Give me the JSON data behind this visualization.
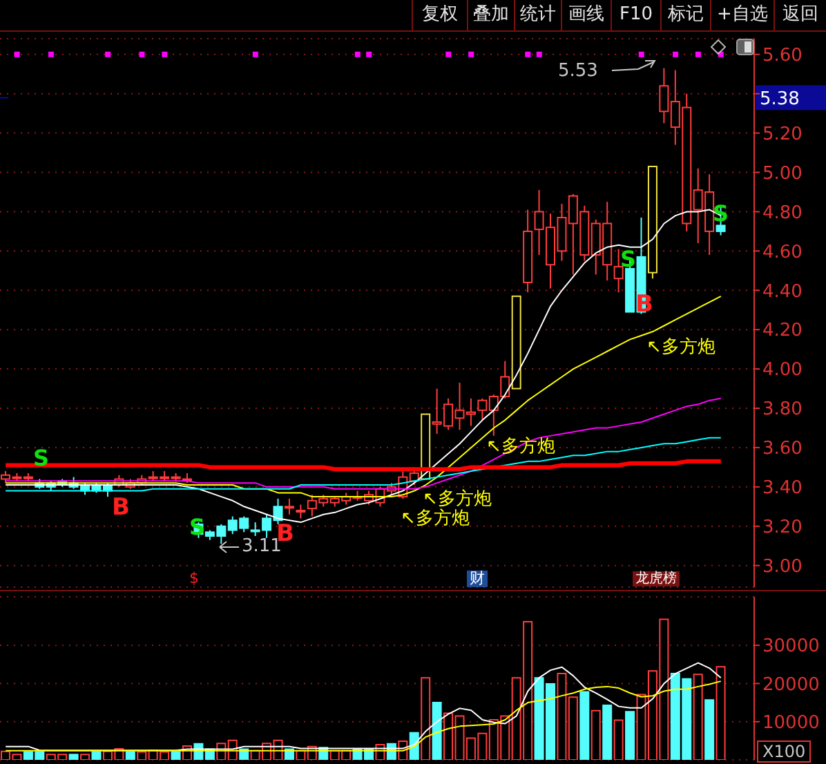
{
  "chart_data": [
    {
      "type": "other",
      "categories": [
        "复权",
        "叠加",
        "统计",
        "画线",
        "F10",
        "标记",
        "+自选",
        "返回"
      ]
    },
    {
      "type": "candlestick",
      "categories": [
        null,
        null,
        null,
        null,
        null,
        null,
        null,
        null,
        null,
        null,
        null,
        null,
        null,
        null,
        null,
        null,
        null,
        null,
        null,
        null,
        null,
        null,
        null,
        null,
        null,
        null,
        null,
        null,
        null,
        null,
        null,
        null,
        null,
        null,
        null,
        null,
        null,
        null,
        null,
        null,
        null,
        null,
        null,
        null,
        null,
        null,
        null,
        null,
        null,
        null,
        null,
        null,
        null,
        null,
        null,
        null,
        null,
        null,
        null,
        null,
        null,
        null,
        null,
        null
      ],
      "ohlc": [
        [
          3.44,
          3.48,
          3.42,
          3.46
        ],
        [
          3.45,
          3.47,
          3.43,
          3.45
        ],
        [
          3.45,
          3.47,
          3.43,
          3.45
        ],
        [
          3.42,
          3.44,
          3.39,
          3.4
        ],
        [
          3.42,
          3.43,
          3.38,
          3.4
        ],
        [
          3.43,
          3.44,
          3.4,
          3.41
        ],
        [
          3.42,
          3.45,
          3.39,
          3.4
        ],
        [
          3.41,
          3.42,
          3.36,
          3.38
        ],
        [
          3.41,
          3.42,
          3.37,
          3.38
        ],
        [
          3.41,
          3.42,
          3.35,
          3.38
        ],
        [
          3.41,
          3.46,
          3.4,
          3.44
        ],
        [
          3.4,
          3.44,
          3.39,
          3.42
        ],
        [
          3.42,
          3.46,
          3.41,
          3.44
        ],
        [
          3.45,
          3.48,
          3.43,
          3.45
        ],
        [
          3.45,
          3.48,
          3.43,
          3.45
        ],
        [
          3.45,
          3.47,
          3.43,
          3.45
        ],
        [
          3.44,
          3.47,
          3.42,
          3.44
        ],
        [
          3.21,
          3.22,
          3.14,
          3.16
        ],
        [
          3.17,
          3.18,
          3.13,
          3.15
        ],
        [
          3.2,
          3.21,
          3.11,
          3.15
        ],
        [
          3.23,
          3.25,
          3.16,
          3.18
        ],
        [
          3.24,
          3.25,
          3.17,
          3.19
        ],
        [
          3.18,
          3.22,
          3.15,
          3.18
        ],
        [
          3.24,
          3.26,
          3.14,
          3.18
        ],
        [
          3.3,
          3.34,
          3.21,
          3.23
        ],
        [
          3.3,
          3.34,
          3.26,
          3.3
        ],
        [
          3.28,
          3.31,
          3.24,
          3.28
        ],
        [
          3.29,
          3.36,
          3.25,
          3.33
        ],
        [
          3.32,
          3.36,
          3.3,
          3.34
        ],
        [
          3.32,
          3.35,
          3.3,
          3.34
        ],
        [
          3.33,
          3.37,
          3.31,
          3.35
        ],
        [
          3.35,
          3.38,
          3.33,
          3.35
        ],
        [
          3.33,
          3.38,
          3.31,
          3.36
        ],
        [
          3.32,
          3.4,
          3.3,
          3.39
        ],
        [
          3.38,
          3.42,
          3.36,
          3.4
        ],
        [
          3.35,
          3.48,
          3.34,
          3.45
        ],
        [
          3.43,
          3.5,
          3.41,
          3.47
        ],
        [
          3.44,
          3.77,
          3.44,
          3.77
        ],
        [
          3.72,
          3.9,
          3.67,
          3.73
        ],
        [
          3.71,
          3.85,
          3.69,
          3.82
        ],
        [
          3.75,
          3.93,
          3.69,
          3.79
        ],
        [
          3.77,
          3.85,
          3.71,
          3.78
        ],
        [
          3.79,
          3.85,
          3.74,
          3.84
        ],
        [
          3.79,
          3.87,
          3.66,
          3.86
        ],
        [
          3.86,
          4.04,
          3.85,
          3.96
        ],
        [
          3.9,
          4.37,
          3.9,
          4.37
        ],
        [
          4.44,
          4.81,
          4.39,
          4.7
        ],
        [
          4.71,
          4.91,
          4.58,
          4.8
        ],
        [
          4.53,
          4.79,
          4.41,
          4.72
        ],
        [
          4.6,
          4.84,
          4.55,
          4.77
        ],
        [
          4.74,
          4.89,
          4.48,
          4.88
        ],
        [
          4.58,
          4.83,
          4.55,
          4.8
        ],
        [
          4.58,
          4.76,
          4.48,
          4.74
        ],
        [
          4.53,
          4.85,
          4.45,
          4.74
        ],
        [
          4.46,
          4.61,
          4.39,
          4.52
        ],
        [
          4.51,
          4.56,
          4.29,
          4.29
        ],
        [
          4.57,
          4.77,
          4.28,
          4.29
        ],
        [
          4.49,
          5.03,
          4.46,
          5.03
        ],
        [
          5.31,
          5.53,
          5.25,
          5.44
        ],
        [
          5.23,
          5.52,
          5.14,
          5.36
        ],
        [
          4.74,
          5.4,
          4.7,
          5.33
        ],
        [
          4.81,
          5.02,
          4.64,
          4.91
        ],
        [
          4.7,
          4.99,
          4.58,
          4.9
        ],
        [
          4.73,
          4.83,
          4.68,
          4.7
        ]
      ],
      "colors": [
        "#ff3c3c",
        "#ff3c3c",
        "#ff3c3c",
        "#54fcfc",
        "#54fcfc",
        "#54fcfc",
        "#54fcfc",
        "#54fcfc",
        "#54fcfc",
        "#54fcfc",
        "#ff3c3c",
        "#ff3c3c",
        "#ff3c3c",
        "#ff3c3c",
        "#ff3c3c",
        "#ff3c3c",
        "#ff3c3c",
        "#54fcfc",
        "#54fcfc",
        "#54fcfc",
        "#54fcfc",
        "#54fcfc",
        "#54fcfc",
        "#54fcfc",
        "#54fcfc",
        "#ff3c3c",
        "#ff3c3c",
        "#ff3c3c",
        "#ff3c3c",
        "#ff3c3c",
        "#ff3c3c",
        "#ff3c3c",
        "#ff3c3c",
        "#ff3c3c",
        "#ff3c3c",
        "#ff3c3c",
        "#ff3c3c",
        "#f0e040",
        "#ff3c3c",
        "#ff3c3c",
        "#ff3c3c",
        "#ff3c3c",
        "#ff3c3c",
        "#ff3c3c",
        "#ff3c3c",
        "#f0e040",
        "#ff3c3c",
        "#ff3c3c",
        "#ff3c3c",
        "#ff3c3c",
        "#ff3c3c",
        "#ff3c3c",
        "#ff3c3c",
        "#ff3c3c",
        "#ff3c3c",
        "#54fcfc",
        "#54fcfc",
        "#f0e040",
        "#ff3c3c",
        "#ff3c3c",
        "#ff3c3c",
        "#ff3c3c",
        "#ff3c3c",
        "#54fcfc"
      ],
      "series": [
        {
          "type": "line",
          "color": "#ffffff",
          "values": [
            3.41,
            3.41,
            3.41,
            3.41,
            3.41,
            3.41,
            3.41,
            3.41,
            3.41,
            3.41,
            3.41,
            3.41,
            3.41,
            3.41,
            3.41,
            3.41,
            3.4,
            3.39,
            3.37,
            3.35,
            3.33,
            3.3,
            3.28,
            3.26,
            3.24,
            3.23,
            3.22,
            3.24,
            3.26,
            3.27,
            3.29,
            3.31,
            3.32,
            3.34,
            3.36,
            3.38,
            3.42,
            3.47,
            3.52,
            3.57,
            3.62,
            3.68,
            3.74,
            3.79,
            3.87,
            3.97,
            4.08,
            4.2,
            4.32,
            4.4,
            4.47,
            4.54,
            4.59,
            4.62,
            4.63,
            4.62,
            4.62,
            4.66,
            4.74,
            4.78,
            4.8,
            4.8,
            4.81,
            4.78
          ]
        },
        {
          "type": "line",
          "color": "#ffff00",
          "values": [
            3.42,
            3.42,
            3.42,
            3.42,
            3.42,
            3.42,
            3.42,
            3.42,
            3.42,
            3.42,
            3.42,
            3.42,
            3.42,
            3.42,
            3.42,
            3.42,
            3.41,
            3.41,
            3.41,
            3.41,
            3.41,
            3.39,
            3.39,
            3.39,
            3.37,
            3.37,
            3.37,
            3.35,
            3.35,
            3.35,
            3.35,
            3.35,
            3.35,
            3.35,
            3.35,
            3.36,
            3.38,
            3.41,
            3.45,
            3.5,
            3.55,
            3.6,
            3.65,
            3.7,
            3.74,
            3.79,
            3.84,
            3.88,
            3.92,
            3.96,
            4.0,
            4.03,
            4.06,
            4.09,
            4.12,
            4.15,
            4.17,
            4.19,
            4.22,
            4.25,
            4.28,
            4.31,
            4.34,
            4.37
          ]
        },
        {
          "type": "line",
          "color": "#ff00ff",
          "values": [
            3.43,
            3.43,
            3.43,
            3.43,
            3.43,
            3.43,
            3.43,
            3.43,
            3.43,
            3.43,
            3.43,
            3.43,
            3.43,
            3.43,
            3.43,
            3.43,
            3.43,
            3.42,
            3.42,
            3.42,
            3.42,
            3.42,
            3.42,
            3.4,
            3.4,
            3.4,
            3.4,
            3.4,
            3.4,
            3.39,
            3.39,
            3.39,
            3.39,
            3.39,
            3.39,
            3.39,
            3.39,
            3.4,
            3.42,
            3.44,
            3.46,
            3.48,
            3.51,
            3.54,
            3.57,
            3.6,
            3.63,
            3.65,
            3.66,
            3.67,
            3.68,
            3.69,
            3.7,
            3.7,
            3.71,
            3.72,
            3.73,
            3.75,
            3.77,
            3.79,
            3.81,
            3.82,
            3.84,
            3.85
          ]
        },
        {
          "type": "line",
          "color": "#00ffff",
          "values": [
            3.38,
            3.38,
            3.38,
            3.38,
            3.38,
            3.38,
            3.38,
            3.38,
            3.38,
            3.38,
            3.38,
            3.38,
            3.38,
            3.39,
            3.39,
            3.39,
            3.39,
            3.39,
            3.39,
            3.39,
            3.39,
            3.39,
            3.39,
            3.39,
            3.39,
            3.39,
            3.41,
            3.41,
            3.41,
            3.41,
            3.41,
            3.41,
            3.41,
            3.41,
            3.41,
            3.42,
            3.43,
            3.44,
            3.45,
            3.46,
            3.47,
            3.48,
            3.49,
            3.5,
            3.51,
            3.52,
            3.53,
            3.53,
            3.54,
            3.55,
            3.56,
            3.56,
            3.57,
            3.58,
            3.58,
            3.59,
            3.6,
            3.61,
            3.62,
            3.62,
            3.63,
            3.64,
            3.65,
            3.65
          ]
        },
        {
          "type": "line",
          "color": "#ff0000",
          "values": [
            3.51,
            3.51,
            3.51,
            3.51,
            3.51,
            3.51,
            3.51,
            3.51,
            3.51,
            3.51,
            3.51,
            3.51,
            3.51,
            3.51,
            3.51,
            3.51,
            3.51,
            3.51,
            3.5,
            3.5,
            3.5,
            3.5,
            3.5,
            3.5,
            3.5,
            3.5,
            3.5,
            3.5,
            3.5,
            3.49,
            3.49,
            3.49,
            3.49,
            3.49,
            3.49,
            3.49,
            3.49,
            3.49,
            3.49,
            3.49,
            3.49,
            3.5,
            3.5,
            3.5,
            3.5,
            3.5,
            3.5,
            3.5,
            3.5,
            3.51,
            3.51,
            3.51,
            3.51,
            3.51,
            3.51,
            3.52,
            3.52,
            3.52,
            3.52,
            3.52,
            3.53,
            3.53,
            3.53,
            3.53
          ]
        },
        {
          "type": "scatter",
          "color": "#ff00ff",
          "marker": "square",
          "values": [
            null,
            5.6,
            null,
            null,
            5.6,
            null,
            null,
            null,
            null,
            5.6,
            null,
            null,
            5.6,
            null,
            5.6,
            null,
            null,
            null,
            null,
            null,
            null,
            null,
            5.6,
            null,
            null,
            null,
            null,
            null,
            null,
            null,
            null,
            5.6,
            5.6,
            null,
            null,
            null,
            null,
            null,
            null,
            5.6,
            null,
            5.6,
            null,
            null,
            null,
            null,
            5.6,
            5.6,
            null,
            null,
            null,
            null,
            null,
            null,
            null,
            null,
            5.6,
            null,
            null,
            5.6,
            null,
            5.6,
            null,
            5.6
          ]
        }
      ],
      "ylim": [
        2.89,
        5.68
      ],
      "yticks": [
        {
          "value": 5.6,
          "label": "5.60"
        },
        {
          "value": 5.4,
          "label": null
        },
        {
          "value": 5.2,
          "label": "5.20"
        },
        {
          "value": 5.0,
          "label": "5.00"
        },
        {
          "value": 4.8,
          "label": "4.80"
        },
        {
          "value": 4.6,
          "label": "4.60"
        },
        {
          "value": 4.4,
          "label": "4.40"
        },
        {
          "value": 4.2,
          "label": "4.20"
        },
        {
          "value": 4.0,
          "label": "4.00"
        },
        {
          "value": 3.8,
          "label": "3.80"
        },
        {
          "value": 3.6,
          "label": "3.60"
        },
        {
          "value": 3.4,
          "label": "3.40"
        },
        {
          "value": 3.2,
          "label": "3.20"
        },
        {
          "value": 3.0,
          "label": "3.00"
        }
      ],
      "grid": "y",
      "tick_labels": "y",
      "ref_lines": [
        {
          "axis": "y",
          "value": 5.38,
          "label": "5.38",
          "color": "#0a0a96"
        }
      ],
      "annotations": [
        "5.53",
        "3.11",
        "↖多方炮",
        "↖多方炮",
        "↖多方炮",
        "↖多方炮",
        "B",
        "B",
        "B",
        "S",
        "S",
        "S",
        "S",
        "$",
        "财",
        "龙虎榜"
      ]
    },
    {
      "type": "bar",
      "stacked": true,
      "categories": [
        null,
        null,
        null,
        null,
        null,
        null,
        null,
        null,
        null,
        null,
        null,
        null,
        null,
        null,
        null,
        null,
        null,
        null,
        null,
        null,
        null,
        null,
        null,
        null,
        null,
        null,
        null,
        null,
        null,
        null,
        null,
        null,
        null,
        null,
        null,
        null,
        null,
        null,
        null,
        null,
        null,
        null,
        null,
        null,
        null,
        null,
        null,
        null,
        null,
        null,
        null,
        null,
        null,
        null,
        null,
        null,
        null,
        null,
        null,
        null,
        null,
        null,
        null,
        null
      ],
      "series": [
        {
          "type": "bar",
          "color": "#ff3c3c",
          "values": [
            2200,
            1400,
            null,
            null,
            1400,
            1400,
            null,
            1400,
            null,
            2200,
            2900,
            null,
            2100,
            2500,
            2100,
            null,
            3600,
            null,
            null,
            4300,
            5100,
            null,
            2400,
            4300,
            5100,
            null,
            2400,
            3500,
            null,
            2400,
            2400,
            null,
            null,
            4000,
            null,
            4900,
            null,
            21500,
            null,
            12200,
            11500,
            5700,
            6900,
            10500,
            11500,
            21500,
            36200,
            null,
            null,
            22600,
            16400,
            null,
            12900,
            null,
            10400,
            null,
            17100,
            23300,
            36800,
            null,
            null,
            22400,
            null,
            24400
          ]
        },
        {
          "type": "bar",
          "color": "#54fcfc",
          "values": [
            null,
            null,
            2100,
            2100,
            null,
            null,
            1400,
            null,
            2100,
            null,
            null,
            2100,
            null,
            null,
            null,
            2100,
            null,
            4200,
            2800,
            null,
            null,
            2800,
            null,
            null,
            null,
            2800,
            null,
            null,
            3200,
            null,
            null,
            2800,
            2800,
            null,
            4200,
            null,
            7100,
            null,
            15000,
            null,
            null,
            null,
            null,
            null,
            null,
            null,
            null,
            21500,
            19900,
            null,
            null,
            17800,
            null,
            14300,
            null,
            12600,
            null,
            null,
            null,
            22600,
            21200,
            null,
            15700,
            null
          ]
        },
        {
          "type": "line",
          "color": "#ffffff",
          "values": [
            3500,
            3500,
            3500,
            2500,
            2500,
            2500,
            2500,
            2500,
            2500,
            2500,
            2500,
            2500,
            2500,
            2500,
            2500,
            2500,
            2800,
            2800,
            2800,
            2800,
            2800,
            3500,
            3500,
            3500,
            3500,
            3500,
            3000,
            3000,
            3000,
            3000,
            3000,
            3000,
            3000,
            3000,
            3000,
            3000,
            4000,
            7500,
            10000,
            12000,
            13500,
            13000,
            10500,
            9800,
            9500,
            11500,
            18000,
            21500,
            23500,
            24300,
            22000,
            19000,
            17500,
            15800,
            14000,
            13600,
            13600,
            16000,
            20000,
            22600,
            24000,
            25400,
            24000,
            21500
          ]
        },
        {
          "type": "line",
          "color": "#ffff00",
          "values": [
            2400,
            2400,
            2400,
            2400,
            2400,
            2400,
            2400,
            2400,
            2400,
            2400,
            2400,
            2400,
            2400,
            2400,
            2400,
            2400,
            2400,
            2400,
            2400,
            2400,
            2400,
            2400,
            2400,
            2400,
            2400,
            2400,
            2400,
            2400,
            2400,
            2400,
            2400,
            2400,
            2400,
            2400,
            2400,
            2400,
            3500,
            6000,
            7200,
            8200,
            8800,
            9000,
            9200,
            9400,
            10500,
            13000,
            15000,
            15500,
            16000,
            16800,
            17500,
            18500,
            19000,
            19200,
            18800,
            17500,
            16500,
            16800,
            18000,
            18500,
            18500,
            19200,
            19800,
            20600
          ]
        }
      ],
      "ylim": [
        0,
        42700
      ],
      "yticks": [
        10000,
        20000,
        30000
      ],
      "grid": "y",
      "tick_labels": "y",
      "annotations": [
        "X100"
      ]
    }
  ]
}
